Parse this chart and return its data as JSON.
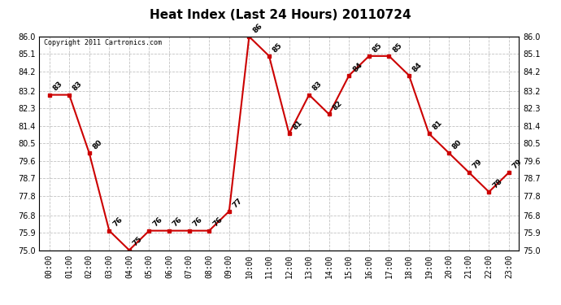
{
  "title": "Heat Index (Last 24 Hours) 20110724",
  "copyright_text": "Copyright 2011 Cartronics.com",
  "hours": [
    "00:00",
    "01:00",
    "02:00",
    "03:00",
    "04:00",
    "05:00",
    "06:00",
    "07:00",
    "08:00",
    "09:00",
    "10:00",
    "11:00",
    "12:00",
    "13:00",
    "14:00",
    "15:00",
    "16:00",
    "17:00",
    "18:00",
    "19:00",
    "20:00",
    "21:00",
    "22:00",
    "23:00"
  ],
  "values": [
    83,
    83,
    80,
    76,
    75,
    76,
    76,
    76,
    76,
    77,
    86,
    85,
    81,
    83,
    82,
    84,
    85,
    85,
    84,
    81,
    80,
    79,
    78,
    79
  ],
  "ylim": [
    75.0,
    86.0
  ],
  "yticks": [
    75.0,
    75.9,
    76.8,
    77.8,
    78.7,
    79.6,
    80.5,
    81.4,
    82.3,
    83.2,
    84.2,
    85.1,
    86.0
  ],
  "line_color": "#cc0000",
  "marker_color": "#cc0000",
  "bg_color": "#ffffff",
  "plot_bg_color": "#ffffff",
  "grid_color": "#bbbbbb",
  "title_fontsize": 11,
  "label_fontsize": 7,
  "annotation_fontsize": 6.5
}
